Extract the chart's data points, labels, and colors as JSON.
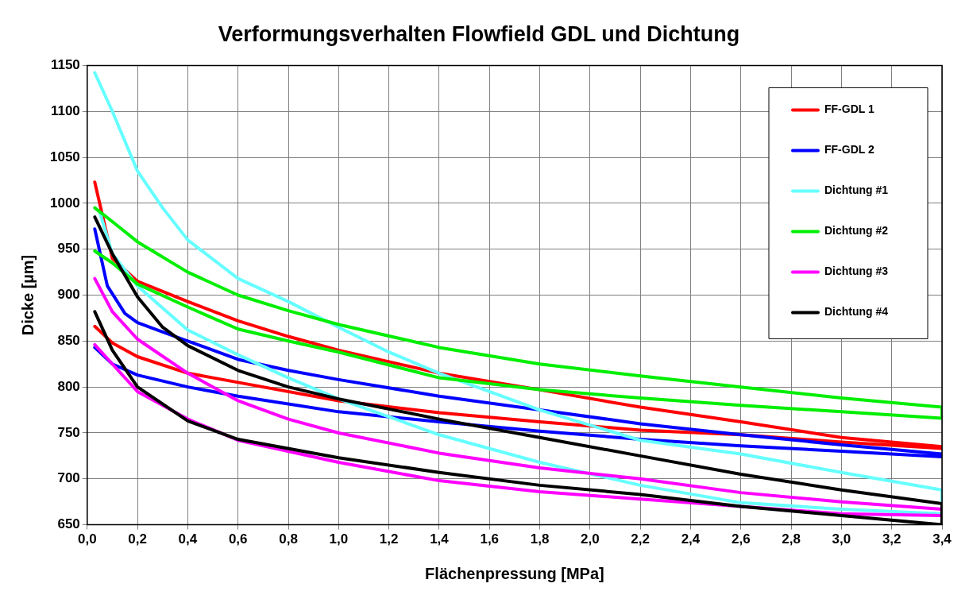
{
  "chart_data": {
    "type": "line",
    "title": "Verformungsverhalten Flowfield GDL und Dichtung",
    "xlabel": "Flächenpressung [MPa]",
    "ylabel": "Dicke [µm]",
    "series": [
      {
        "name": "FF-GDL 1",
        "color": "#ff0000",
        "x": [
          0.03,
          0.1,
          0.2,
          0.4,
          0.6,
          0.8,
          1.0,
          1.4,
          1.8,
          2.2,
          2.6,
          3.0,
          3.4,
          3.4,
          3.0,
          2.6,
          2.2,
          1.8,
          1.4,
          1.0,
          0.6,
          0.4,
          0.2,
          0.1,
          0.03
        ],
        "values": [
          1023,
          940,
          915,
          893,
          872,
          855,
          840,
          815,
          797,
          778,
          762,
          745,
          735,
          733,
          740,
          748,
          753,
          762,
          772,
          785,
          805,
          815,
          833,
          848,
          866
        ]
      },
      {
        "name": "FF-GDL 2",
        "color": "#0000ff",
        "x": [
          0.03,
          0.08,
          0.15,
          0.2,
          0.3,
          0.4,
          0.6,
          0.8,
          1.0,
          1.4,
          1.8,
          2.2,
          2.6,
          3.0,
          3.4,
          3.4,
          3.0,
          2.6,
          2.2,
          1.8,
          1.4,
          1.0,
          0.6,
          0.4,
          0.2,
          0.1,
          0.03
        ],
        "values": [
          972,
          910,
          880,
          870,
          860,
          850,
          830,
          818,
          808,
          790,
          775,
          760,
          748,
          737,
          727,
          724,
          730,
          736,
          743,
          752,
          762,
          773,
          790,
          800,
          813,
          825,
          843
        ]
      },
      {
        "name": "Dichtung #1",
        "color": "#66ffff",
        "x": [
          0.03,
          0.1,
          0.2,
          0.3,
          0.4,
          0.6,
          0.8,
          1.0,
          1.2,
          1.4,
          1.8,
          2.2,
          2.6,
          3.0,
          3.4,
          3.4,
          3.0,
          2.6,
          2.2,
          1.8,
          1.4,
          1.0,
          0.8,
          0.6,
          0.4,
          0.2,
          0.1,
          0.05
        ],
        "values": [
          1142,
          1100,
          1035,
          995,
          960,
          918,
          893,
          865,
          838,
          815,
          775,
          742,
          727,
          707,
          688,
          662,
          667,
          674,
          693,
          718,
          748,
          787,
          810,
          835,
          862,
          910,
          945,
          990
        ]
      },
      {
        "name": "Dichtung #2",
        "color": "#00ee00",
        "x": [
          0.03,
          0.1,
          0.2,
          0.4,
          0.6,
          0.8,
          1.0,
          1.4,
          1.8,
          2.2,
          2.6,
          3.0,
          3.4,
          3.4,
          3.0,
          2.6,
          2.2,
          1.8,
          1.4,
          1.0,
          0.8,
          0.6,
          0.4,
          0.2,
          0.1,
          0.03
        ],
        "values": [
          995,
          980,
          958,
          925,
          900,
          883,
          868,
          843,
          825,
          812,
          800,
          788,
          778,
          766,
          773,
          780,
          788,
          797,
          810,
          838,
          850,
          863,
          887,
          912,
          935,
          948
        ]
      },
      {
        "name": "Dichtung #3",
        "color": "#ff00ff",
        "x": [
          0.03,
          0.1,
          0.2,
          0.4,
          0.6,
          0.8,
          1.0,
          1.4,
          1.8,
          2.2,
          2.6,
          3.0,
          3.4,
          3.4,
          3.0,
          2.6,
          2.2,
          1.8,
          1.4,
          1.0,
          0.6,
          0.4,
          0.2,
          0.1,
          0.03
        ],
        "values": [
          918,
          882,
          852,
          815,
          785,
          765,
          750,
          728,
          712,
          700,
          685,
          675,
          667,
          660,
          662,
          670,
          678,
          686,
          698,
          718,
          742,
          765,
          795,
          825,
          846
        ]
      },
      {
        "name": "Dichtung #4",
        "color": "#000000",
        "x": [
          0.03,
          0.1,
          0.2,
          0.3,
          0.4,
          0.6,
          0.8,
          1.0,
          1.4,
          1.8,
          2.2,
          2.6,
          3.0,
          3.4,
          3.4,
          3.0,
          2.6,
          2.2,
          1.8,
          1.4,
          1.0,
          0.6,
          0.4,
          0.2,
          0.1,
          0.03
        ],
        "values": [
          985,
          945,
          898,
          865,
          845,
          818,
          800,
          787,
          765,
          745,
          725,
          705,
          688,
          673,
          650,
          660,
          670,
          683,
          693,
          707,
          723,
          743,
          763,
          800,
          840,
          882
        ]
      }
    ],
    "xlim": [
      0,
      3.4
    ],
    "xticks": [
      {
        "value": 0,
        "label": "0,0"
      },
      {
        "value": 0.2,
        "label": "0,2"
      },
      {
        "value": 0.4,
        "label": "0,4"
      },
      {
        "value": 0.6,
        "label": "0,6"
      },
      {
        "value": 0.8,
        "label": "0,8"
      },
      {
        "value": 1.0,
        "label": "1,0"
      },
      {
        "value": 1.2,
        "label": "1,2"
      },
      {
        "value": 1.4,
        "label": "1,4"
      },
      {
        "value": 1.6,
        "label": "1,6"
      },
      {
        "value": 1.8,
        "label": "1,8"
      },
      {
        "value": 2.0,
        "label": "2,0"
      },
      {
        "value": 2.2,
        "label": "2,2"
      },
      {
        "value": 2.4,
        "label": "2,4"
      },
      {
        "value": 2.6,
        "label": "2,6"
      },
      {
        "value": 2.8,
        "label": "2,8"
      },
      {
        "value": 3.0,
        "label": "3,0"
      },
      {
        "value": 3.2,
        "label": "3,2"
      },
      {
        "value": 3.4,
        "label": "3,4"
      }
    ],
    "ylim": [
      650,
      1150
    ],
    "yticks": [
      650,
      700,
      750,
      800,
      850,
      900,
      950,
      1000,
      1050,
      1100,
      1150
    ],
    "grid": true,
    "legend": "top right",
    "marker": "none",
    "line_style": "solid"
  }
}
